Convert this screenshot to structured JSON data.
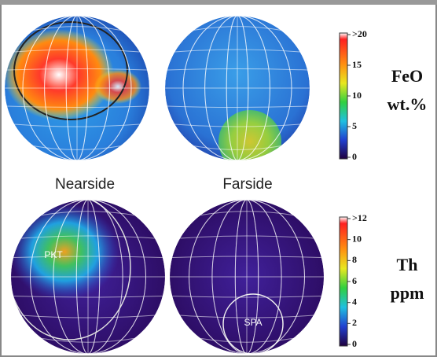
{
  "panels": {
    "nearside_label": "Nearside",
    "farside_label": "Farside",
    "pkt_label": "PKT",
    "spa_label": "SPA"
  },
  "feo_scale": {
    "title_line1": "FeO",
    "title_line2": "wt.%",
    "ticks": [
      ">20",
      "15",
      "10",
      "5",
      "0"
    ]
  },
  "th_scale": {
    "title_line1": "Th",
    "title_line2": "ppm",
    "ticks": [
      ">12",
      "10",
      "8",
      "6",
      "4",
      "2",
      "0"
    ]
  }
}
